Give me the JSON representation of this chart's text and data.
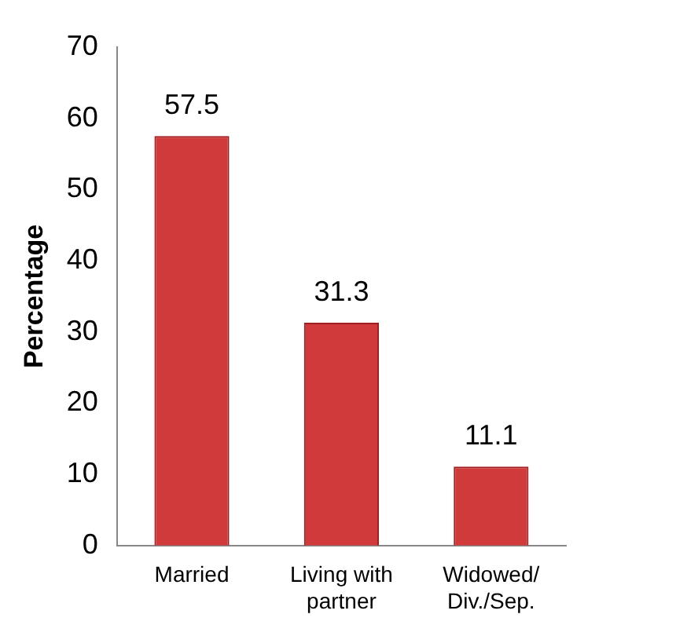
{
  "chart_data": {
    "type": "bar",
    "ylabel": "Percentage",
    "categories": [
      "Married",
      "Living with partner",
      "Widowed/ Div./Sep."
    ],
    "values": [
      57.5,
      31.3,
      11.1
    ],
    "color": "#d03a3a",
    "ylim": [
      0,
      70
    ],
    "yticks": [
      0,
      10,
      20,
      30,
      40,
      50,
      60,
      70
    ],
    "grid": false,
    "legend": false,
    "data_labels": true
  }
}
